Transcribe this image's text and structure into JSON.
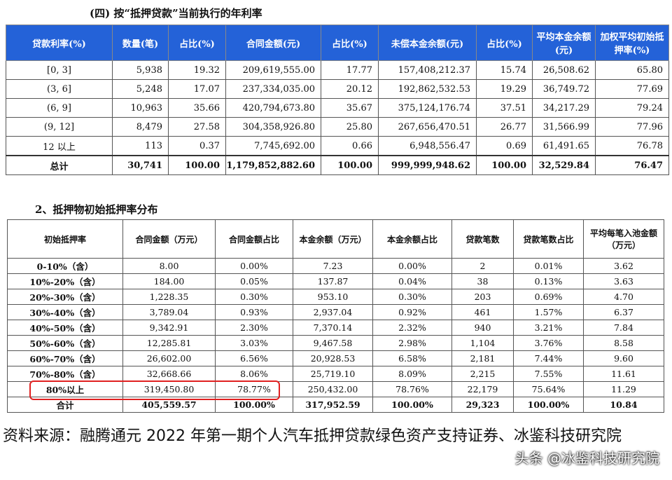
{
  "section1": {
    "title": "(四) 按“抵押贷款”当前执行的年利率",
    "table": {
      "headers": [
        "贷款利率(%)",
        "数量(笔)",
        "占比(%)",
        "合同金额(元)",
        "占比(%)",
        "未偿本金余额(元)",
        "占比(%)",
        "平均本金余额(元)",
        "加权平均初始抵押率(%)"
      ],
      "rows": [
        [
          "[0, 3]",
          "5,938",
          "19.32",
          "209,619,555.00",
          "17.77",
          "157,408,212.37",
          "15.74",
          "26,508.62",
          "65.80"
        ],
        [
          "(3, 6]",
          "5,248",
          "17.07",
          "237,334,035.00",
          "20.12",
          "192,862,532.53",
          "19.29",
          "36,749.72",
          "77.69"
        ],
        [
          "(6, 9]",
          "10,963",
          "35.66",
          "420,794,673.80",
          "35.67",
          "375,124,176.74",
          "37.51",
          "34,217.29",
          "79.24"
        ],
        [
          "(9, 12]",
          "8,479",
          "27.58",
          "304,358,926.80",
          "25.80",
          "267,656,470.51",
          "26.77",
          "31,566.99",
          "77.96"
        ],
        [
          "12 以上",
          "113",
          "0.37",
          "7,745,692.00",
          "0.66",
          "6,948,556.47",
          "0.69",
          "61,491.65",
          "76.78"
        ],
        [
          "总计",
          "30,741",
          "100.00",
          "1,179,852,882.60",
          "100.00",
          "999,999,948.62",
          "100.00",
          "32,529.84",
          "76.47"
        ]
      ]
    }
  },
  "section2": {
    "title": "2、抵押物初始抵押率分布",
    "table": {
      "headers": [
        "初始抵押率",
        "合同金额（万元）",
        "合同金额占比",
        "本金余额（万元）",
        "本金余额占比",
        "贷款笔数",
        "贷款笔数占比",
        "平均每笔入池金额（万元）"
      ],
      "rows": [
        [
          "0-10%（含）",
          "8.00",
          "0.00%",
          "7.23",
          "0.00%",
          "2",
          "0.01%",
          "3.62"
        ],
        [
          "10%-20%（含）",
          "184.00",
          "0.05%",
          "137.87",
          "0.04%",
          "38",
          "0.13%",
          "3.63"
        ],
        [
          "20%-30%（含）",
          "1,228.35",
          "0.30%",
          "953.10",
          "0.30%",
          "203",
          "0.69%",
          "4.70"
        ],
        [
          "30%-40%（含）",
          "3,789.04",
          "0.93%",
          "2,937.04",
          "0.92%",
          "461",
          "1.57%",
          "6.37"
        ],
        [
          "40%-50%（含）",
          "9,342.91",
          "2.30%",
          "7,370.14",
          "2.32%",
          "940",
          "3.21%",
          "7.84"
        ],
        [
          "50%-60%（含）",
          "12,285.81",
          "3.03%",
          "9,467.58",
          "2.98%",
          "1,104",
          "3.76%",
          "8.58"
        ],
        [
          "60%-70%（含）",
          "26,602.00",
          "6.56%",
          "20,928.53",
          "6.58%",
          "2,181",
          "7.44%",
          "9.60"
        ],
        [
          "70%-80%（含）",
          "32,668.66",
          "8.06%",
          "25,719.10",
          "8.09%",
          "2,215",
          "7.55%",
          "11.61"
        ],
        [
          "80%以上",
          "319,450.80",
          "78.77%",
          "250,432.00",
          "78.76%",
          "22,179",
          "75.64%",
          "11.29"
        ],
        [
          "合计",
          "405,559.57",
          "100.00%",
          "317,952.59",
          "100.00%",
          "29,323",
          "100.00%",
          "10.84"
        ]
      ]
    }
  },
  "source": "资料来源：融腾通元 2022 年第一期个人汽车抵押贷款绿色资产支持证券、冰鉴科技研究院",
  "watermark": "头条 @冰鉴科技研究院"
}
